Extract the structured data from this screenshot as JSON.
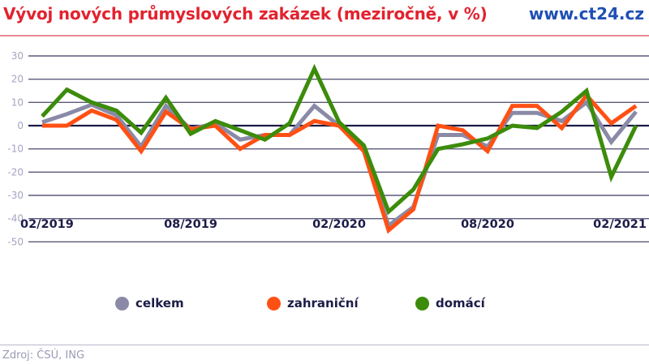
{
  "header": {
    "title": "Vývoj nových průmyslových zakázek (meziročně, v %)",
    "brand": "www.ct24.cz"
  },
  "colors": {
    "title": "#e3222e",
    "brand": "#1f4fb4",
    "celkem": "#8a8aa8",
    "zahranicni": "#ff5014",
    "domaci": "#3c8c0a",
    "grid": "#5a5a7a",
    "zero_line": "#1c1c48"
  },
  "legend": {
    "items": [
      {
        "label": "celkem",
        "color": "#8a8aa8"
      },
      {
        "label": "zahraniční",
        "color": "#ff5014"
      },
      {
        "label": "domácí",
        "color": "#3c8c0a"
      }
    ]
  },
  "footer": {
    "source": "Zdroj: ČSÚ, ING"
  },
  "chart_data": {
    "type": "line",
    "title": "Vývoj nových průmyslových zakázek (meziročně, v %)",
    "xlabel": "",
    "ylabel": "",
    "ylim": [
      -50,
      30
    ],
    "yticks": [
      30,
      20,
      10,
      0,
      -10,
      -20,
      -30,
      -40,
      -50
    ],
    "xtick_labels": [
      "02/2019",
      "08/2019",
      "02/2020",
      "08/2020",
      "02/2021"
    ],
    "xtick_indices": [
      0,
      6,
      12,
      18,
      24
    ],
    "grid": true,
    "legend_position": "bottom",
    "x": [
      "02/2019",
      "03/2019",
      "04/2019",
      "05/2019",
      "06/2019",
      "07/2019",
      "08/2019",
      "09/2019",
      "10/2019",
      "11/2019",
      "12/2019",
      "01/2020",
      "02/2020",
      "03/2020",
      "04/2020",
      "05/2020",
      "06/2020",
      "07/2020",
      "08/2020",
      "09/2020",
      "10/2020",
      "11/2020",
      "12/2020",
      "01/2021",
      "02/2021"
    ],
    "series": [
      {
        "name": "celkem",
        "color": "#8a8aa8",
        "values": [
          1.5,
          5,
          9,
          4.5,
          -9,
          8.5,
          -1.5,
          1,
          -6,
          -4,
          -4,
          8.5,
          0,
          -10,
          -43,
          -35,
          -4,
          -4,
          -9,
          5.5,
          5.5,
          2,
          10,
          -7,
          6
        ]
      },
      {
        "name": "zahraniční",
        "color": "#ff5014",
        "values": [
          0,
          0,
          6.5,
          2.5,
          -11,
          6,
          -1.5,
          0,
          -10,
          -4,
          -4,
          2,
          0,
          -11,
          -45,
          -36,
          0,
          -2,
          -11,
          8.5,
          8.5,
          -1,
          13,
          1,
          8.5
        ]
      },
      {
        "name": "domácí",
        "color": "#3c8c0a",
        "values": [
          4,
          15.5,
          10,
          6.5,
          -3,
          12,
          -3.5,
          2,
          -2,
          -6,
          1,
          24.5,
          1.5,
          -8.5,
          -37,
          -27.5,
          -10,
          -8,
          -5.5,
          0,
          -1,
          6,
          15,
          -22,
          0
        ]
      }
    ]
  }
}
